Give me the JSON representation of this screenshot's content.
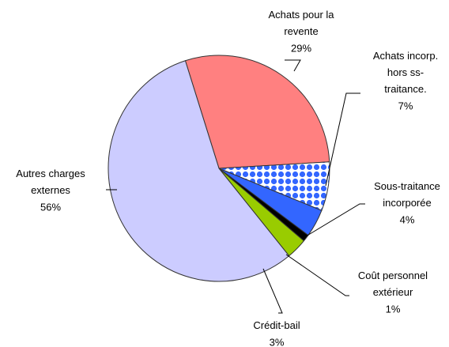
{
  "chart_data": {
    "type": "pie",
    "categories": [
      "Achats pour la\nrevente",
      "Achats incorp.\nhors ss-\ntraitance.",
      "Sous-traitance\nincorporée",
      "Coût personnel\nextérieur",
      "Crédit-bail",
      "Autres charges\nexternes"
    ],
    "values": [
      29,
      7,
      4,
      1,
      3,
      56
    ],
    "value_labels": [
      "29%",
      "7%",
      "4%",
      "1%",
      "3%",
      "56%"
    ],
    "colors": [
      "#ff8080",
      "pattern",
      "#3366ff",
      "#000000",
      "#99cc00",
      "#ccccff"
    ]
  }
}
